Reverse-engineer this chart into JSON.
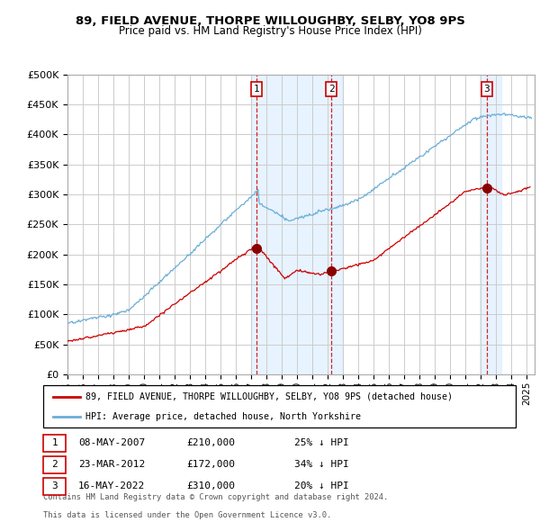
{
  "title1": "89, FIELD AVENUE, THORPE WILLOUGHBY, SELBY, YO8 9PS",
  "title2": "Price paid vs. HM Land Registry's House Price Index (HPI)",
  "ylim": [
    0,
    500000
  ],
  "yticks": [
    0,
    50000,
    100000,
    150000,
    200000,
    250000,
    300000,
    350000,
    400000,
    450000,
    500000
  ],
  "ytick_labels": [
    "£0",
    "£50K",
    "£100K",
    "£150K",
    "£200K",
    "£250K",
    "£300K",
    "£350K",
    "£400K",
    "£450K",
    "£500K"
  ],
  "xlim_start": 1995.0,
  "xlim_end": 2025.5,
  "xtick_years": [
    1995,
    1996,
    1997,
    1998,
    1999,
    2000,
    2001,
    2002,
    2003,
    2004,
    2005,
    2006,
    2007,
    2008,
    2009,
    2010,
    2011,
    2012,
    2013,
    2014,
    2015,
    2016,
    2017,
    2018,
    2019,
    2020,
    2021,
    2022,
    2023,
    2024,
    2025
  ],
  "hpi_color": "#6baed6",
  "hpi_fill_color": "#ddeeff",
  "price_color": "#cc0000",
  "marker_color": "#880000",
  "grid_color": "#cccccc",
  "bg_color": "#ffffff",
  "plot_bg_color": "#ffffff",
  "sale1_x": 2007.36,
  "sale1_y": 210000,
  "sale2_x": 2012.22,
  "sale2_y": 172000,
  "sale3_x": 2022.37,
  "sale3_y": 310000,
  "shade1_start": 2007.0,
  "shade1_end": 2012.92,
  "shade3_start": 2021.9,
  "shade3_end": 2023.3,
  "legend_label_red": "89, FIELD AVENUE, THORPE WILLOUGHBY, SELBY, YO8 9PS (detached house)",
  "legend_label_blue": "HPI: Average price, detached house, North Yorkshire",
  "table_entries": [
    {
      "num": "1",
      "date": "08-MAY-2007",
      "price": "£210,000",
      "hpi": "25% ↓ HPI"
    },
    {
      "num": "2",
      "date": "23-MAR-2012",
      "price": "£172,000",
      "hpi": "34% ↓ HPI"
    },
    {
      "num": "3",
      "date": "16-MAY-2022",
      "price": "£310,000",
      "hpi": "20% ↓ HPI"
    }
  ],
  "footnote1": "Contains HM Land Registry data © Crown copyright and database right 2024.",
  "footnote2": "This data is licensed under the Open Government Licence v3.0."
}
